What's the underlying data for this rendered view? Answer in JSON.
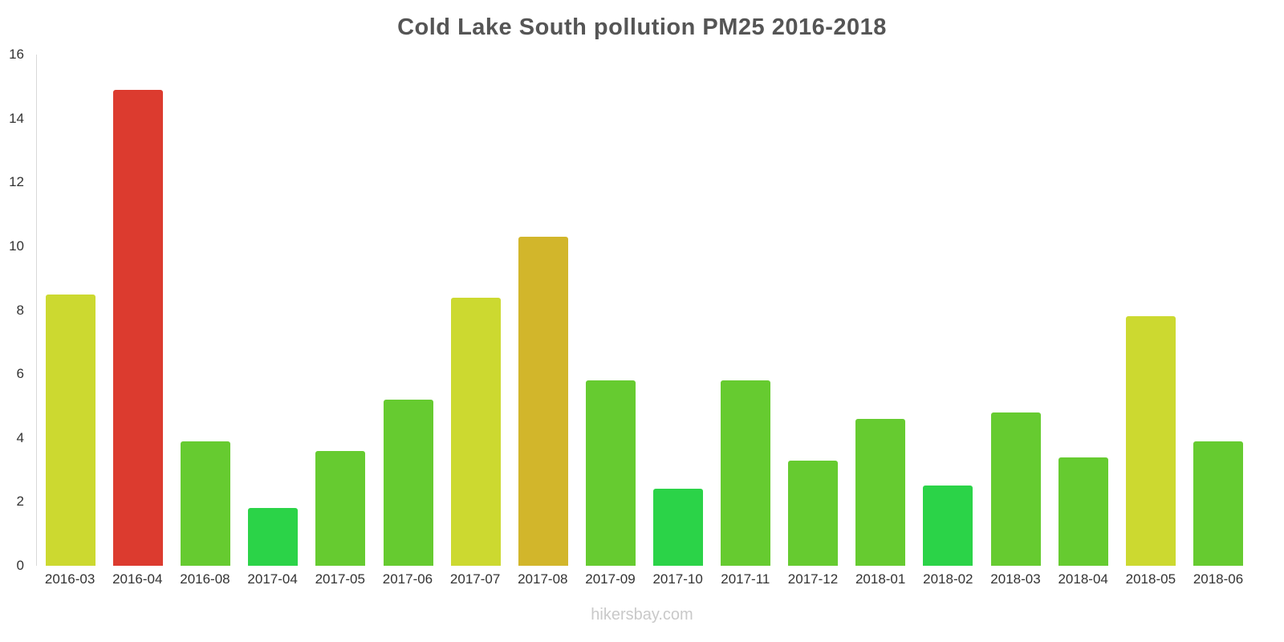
{
  "chart_data": {
    "type": "bar",
    "title": "Cold Lake South pollution PM25 2016-2018",
    "categories": [
      "2016-03",
      "2016-04",
      "2016-08",
      "2017-04",
      "2017-05",
      "2017-06",
      "2017-07",
      "2017-08",
      "2017-09",
      "2017-10",
      "2017-11",
      "2017-12",
      "2018-01",
      "2018-02",
      "2018-03",
      "2018-04",
      "2018-05",
      "2018-06"
    ],
    "values": [
      8.5,
      14.9,
      3.9,
      1.8,
      3.6,
      5.2,
      8.4,
      10.3,
      5.8,
      2.4,
      5.8,
      3.3,
      4.6,
      2.5,
      4.8,
      3.4,
      7.8,
      3.9
    ],
    "bar_colors": [
      "#ccd930",
      "#dc3b2f",
      "#66cb30",
      "#2bd348",
      "#66cb30",
      "#66cb30",
      "#ccd930",
      "#d2b62b",
      "#66cb30",
      "#2bd348",
      "#66cb30",
      "#66cb30",
      "#66cb30",
      "#2bd348",
      "#66cb30",
      "#66cb30",
      "#ccd930",
      "#66cb30"
    ],
    "xlabel": "",
    "ylabel": "",
    "ylim": [
      0,
      16
    ],
    "y_ticks": [
      0,
      2,
      4,
      6,
      8,
      10,
      12,
      14,
      16
    ],
    "grid": false,
    "legend": false
  },
  "footer": {
    "watermark": "hikersbay.com"
  }
}
